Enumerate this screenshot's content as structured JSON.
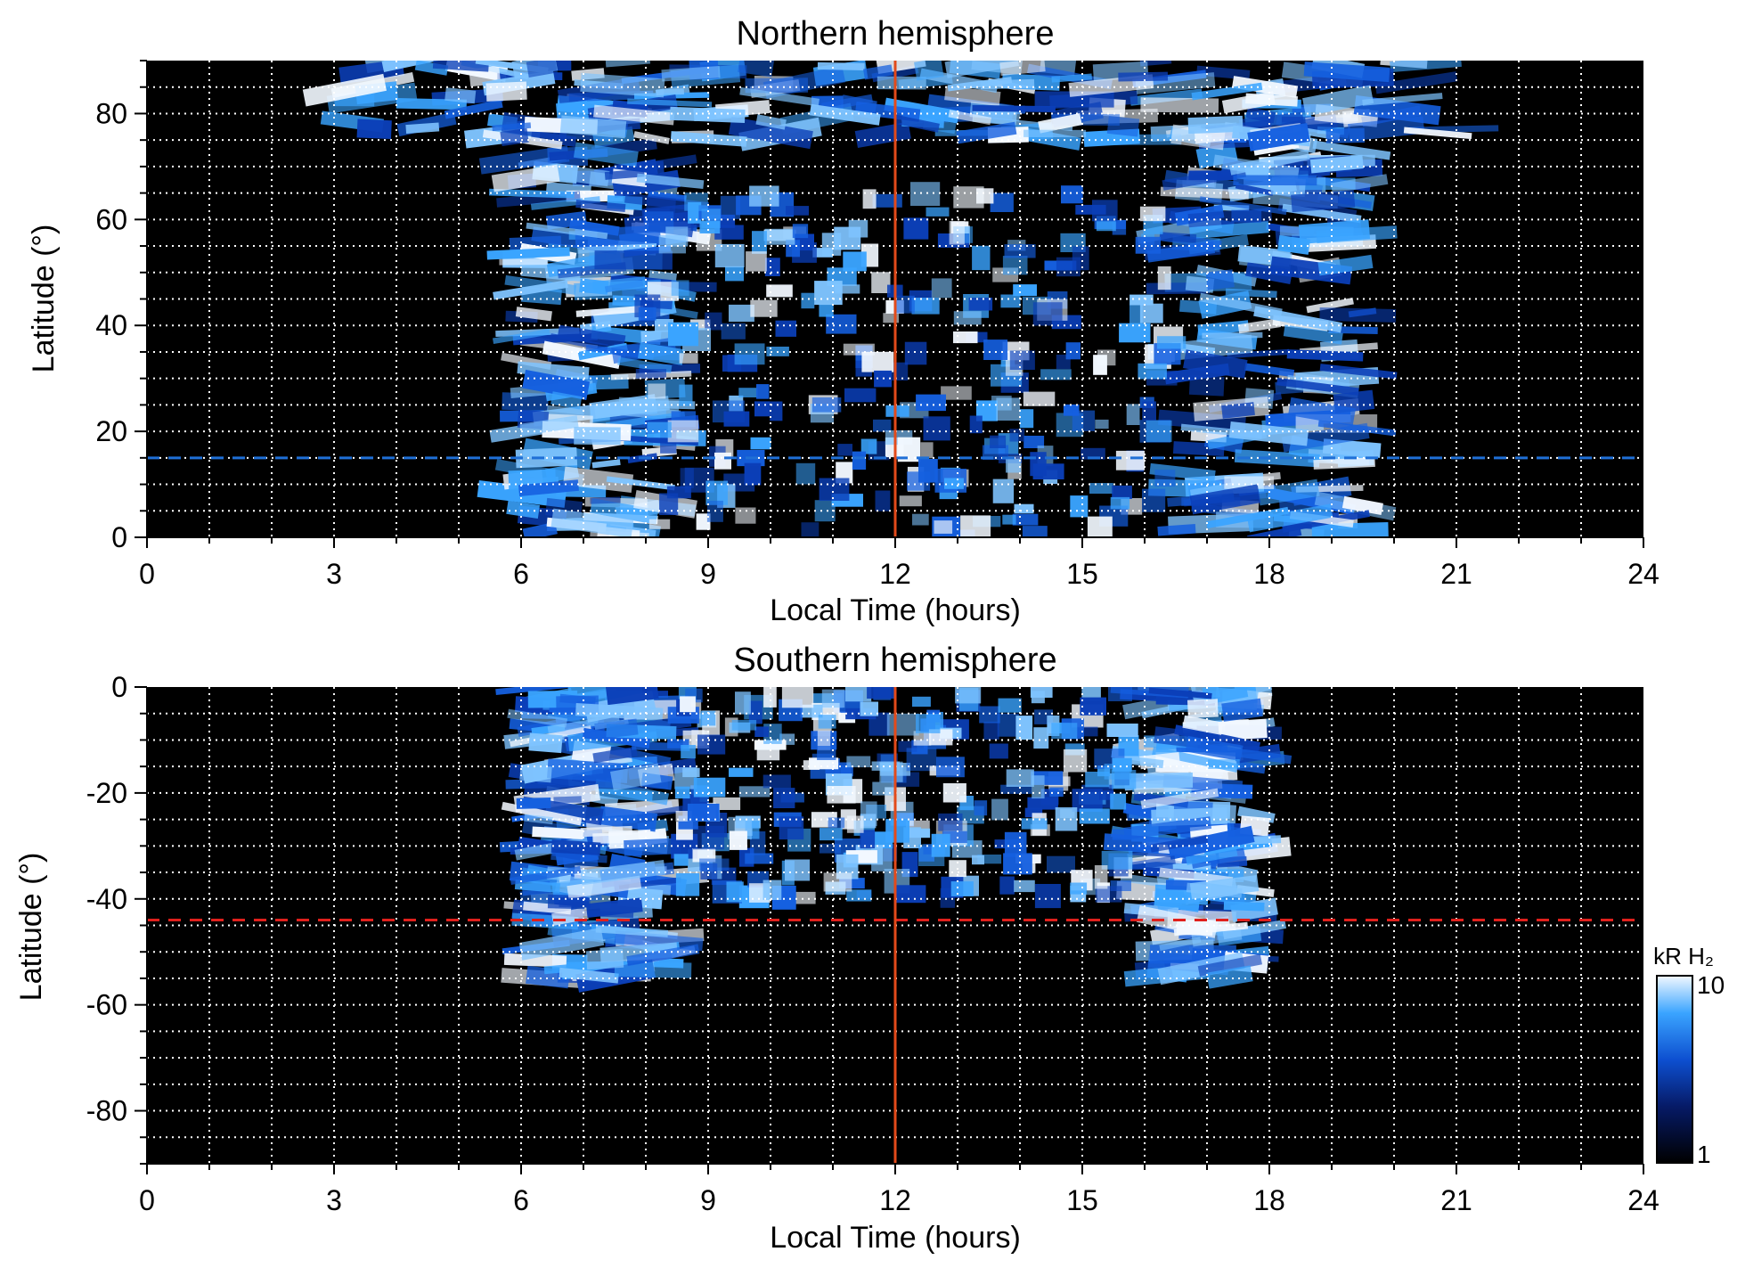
{
  "colors": {
    "background": "#000000",
    "grid": "#ffffff",
    "noon_line": "#e34a1a",
    "north_dash": "#1f6fd6",
    "south_dash": "#e0201c",
    "emission_low": "#000000",
    "emission_mid": "#0b3fb8",
    "emission_high": "#3aa4ff",
    "emission_peak": "#f2f8ff"
  },
  "chart_data": [
    {
      "type": "heatmap",
      "title": "Northern hemisphere",
      "xlabel": "Local Time (hours)",
      "ylabel": "Latitude (°)",
      "xlim": [
        0,
        24
      ],
      "ylim": [
        0,
        90
      ],
      "xticks": [
        "0",
        "3",
        "6",
        "9",
        "12",
        "15",
        "18",
        "21",
        "24"
      ],
      "yticks": [
        "0",
        "20",
        "40",
        "60",
        "80"
      ],
      "ytick_values": [
        0,
        20,
        40,
        60,
        80
      ],
      "grid": true,
      "vertical_line_x": 12,
      "dashed_line_lat": 15,
      "emission_regions": [
        {
          "lt_start": 6.0,
          "lt_end": 8.5,
          "lat_min": 0,
          "lat_max": 80,
          "intensity": "high"
        },
        {
          "lt_start": 16.5,
          "lt_end": 19.5,
          "lat_min": 0,
          "lat_max": 80,
          "intensity": "high"
        },
        {
          "lt_start": 8.0,
          "lt_end": 16.5,
          "lat_min": 0,
          "lat_max": 65,
          "intensity": "patchy"
        },
        {
          "lt_start": 3.0,
          "lt_end": 21.0,
          "lat_min": 75,
          "lat_max": 90,
          "intensity": "high"
        }
      ]
    },
    {
      "type": "heatmap",
      "title": "Southern hemisphere",
      "xlabel": "Local Time (hours)",
      "ylabel": "Latitude (°)",
      "xlim": [
        0,
        24
      ],
      "ylim": [
        -90,
        0
      ],
      "xticks": [
        "0",
        "3",
        "6",
        "9",
        "12",
        "15",
        "18",
        "21",
        "24"
      ],
      "yticks": [
        "0",
        "-20",
        "-40",
        "-60",
        "-80"
      ],
      "ytick_values": [
        0,
        -20,
        -40,
        -60,
        -80
      ],
      "grid": true,
      "vertical_line_x": 12,
      "dashed_line_lat": -44,
      "emission_regions": [
        {
          "lt_start": 6.2,
          "lt_end": 8.3,
          "lat_min": -55,
          "lat_max": 0,
          "intensity": "high"
        },
        {
          "lt_start": 16.0,
          "lt_end": 17.8,
          "lat_min": -55,
          "lat_max": 0,
          "intensity": "high"
        },
        {
          "lt_start": 8.5,
          "lt_end": 15.8,
          "lat_min": -40,
          "lat_max": 0,
          "intensity": "patchy"
        }
      ]
    }
  ],
  "colorbar": {
    "label": "kR H₂",
    "max_label": "10",
    "min_label": "1",
    "scale": "log",
    "range": [
      1,
      10
    ]
  }
}
